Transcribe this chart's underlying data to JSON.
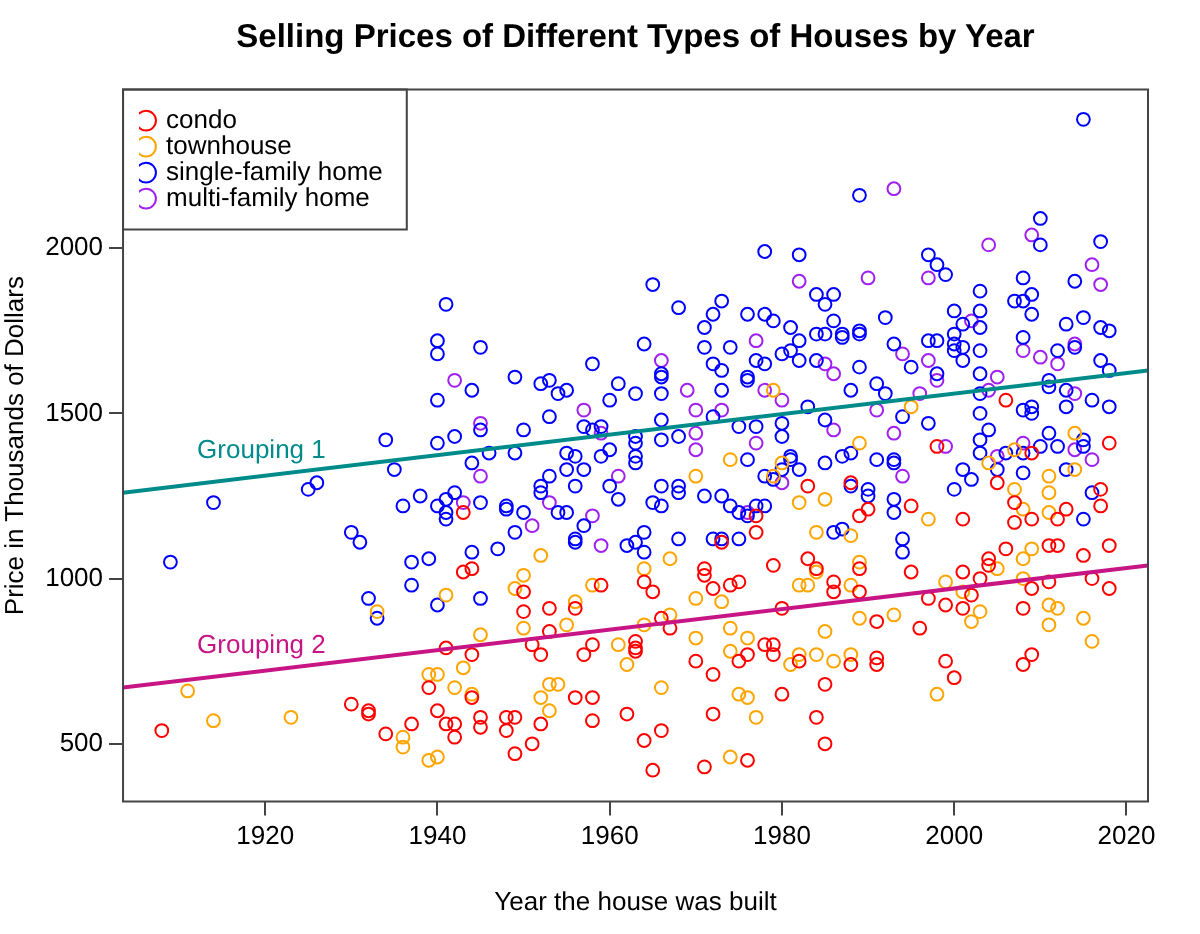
{
  "chart_data": {
    "type": "scatter",
    "title": "Selling Prices of Different Types of Houses by Year",
    "xlabel": "Year the house was built",
    "ylabel": "Price in Thousands of Dollars",
    "xlim": [
      1903.5,
      2022.5
    ],
    "ylim": [
      325,
      2480
    ],
    "xticks": [
      1920,
      1940,
      1960,
      1980,
      2000,
      2020
    ],
    "yticks": [
      500,
      1000,
      1500,
      2000
    ],
    "grid": false,
    "legend": "top left",
    "marker": "circle",
    "series": [
      {
        "name": "condo",
        "color": "#ff0000",
        "x": [
          1908,
          1930,
          1932,
          1932,
          1934,
          1937,
          1939,
          1940,
          1941,
          1942,
          1942,
          1944,
          1943,
          1943,
          1944,
          1941,
          1945,
          1945,
          1944,
          1948,
          1948,
          1949,
          1949,
          1951,
          1952,
          1950,
          1950,
          1951,
          1952,
          1953,
          1953,
          1956,
          1957,
          1956,
          1958,
          1958,
          1958,
          1959,
          1962,
          1963,
          1963,
          1963,
          1964,
          1965,
          1964,
          1966,
          1965,
          1966,
          1967,
          1970,
          1972,
          1971,
          1972,
          1971,
          1971,
          1972,
          1973,
          1974,
          1975,
          1975,
          1976,
          1976,
          1977,
          1978,
          1979,
          1979,
          1980,
          1979,
          1980,
          1982,
          1983,
          1983,
          1984,
          1986,
          1986,
          1984,
          1985,
          1985,
          1977,
          1988,
          1989,
          1990,
          1989,
          1989,
          1988,
          1991,
          1991,
          1991,
          1995,
          1995,
          1997,
          1996,
          1998,
          1999,
          1999,
          2000,
          2001,
          2001,
          2001,
          2002,
          2003,
          2004,
          2004,
          2005,
          2006,
          2007,
          2007,
          2008,
          2008,
          2009,
          2009,
          2009,
          2011,
          2011,
          2012,
          2012,
          2013,
          2015,
          2016,
          2017,
          2017,
          2018,
          2018,
          2018,
          2006,
          2009
        ],
        "values": [
          540,
          620,
          600,
          590,
          530,
          560,
          670,
          600,
          560,
          560,
          520,
          640,
          1020,
          1200,
          770,
          790,
          580,
          550,
          1030,
          580,
          540,
          580,
          470,
          500,
          560,
          960,
          900,
          800,
          770,
          910,
          840,
          910,
          770,
          640,
          640,
          570,
          800,
          980,
          590,
          810,
          790,
          780,
          990,
          960,
          510,
          540,
          420,
          880,
          850,
          750,
          710,
          430,
          590,
          1030,
          1010,
          970,
          1110,
          980,
          990,
          750,
          770,
          450,
          1140,
          800,
          800,
          1040,
          910,
          770,
          650,
          750,
          1280,
          1060,
          1030,
          990,
          960,
          580,
          500,
          680,
          1190,
          1290,
          1190,
          1210,
          1030,
          960,
          740,
          870,
          760,
          740,
          1220,
          1020,
          940,
          850,
          1400,
          920,
          750,
          700,
          1180,
          1020,
          910,
          950,
          1000,
          1060,
          1040,
          1290,
          1090,
          1230,
          1170,
          910,
          740,
          1180,
          970,
          770,
          1100,
          990,
          1100,
          1180,
          1210,
          1070,
          1000,
          1270,
          1220,
          1100,
          970,
          1410,
          1540,
          1380
        ]
      },
      {
        "name": "townhouse",
        "color": "#ffa500",
        "x": [
          1911,
          1914,
          1923,
          1933,
          1936,
          1936,
          1939,
          1940,
          1939,
          1940,
          1941,
          1942,
          1943,
          1944,
          1945,
          1949,
          1950,
          1950,
          1952,
          1952,
          1953,
          1954,
          1953,
          1955,
          1956,
          1958,
          1961,
          1962,
          1964,
          1964,
          1967,
          1967,
          1966,
          1970,
          1970,
          1970,
          1973,
          1974,
          1974,
          1975,
          1976,
          1977,
          1974,
          1976,
          1979,
          1980,
          1981,
          1982,
          1982,
          1983,
          1984,
          1985,
          1984,
          1985,
          1982,
          1986,
          1984,
          1988,
          1989,
          1988,
          1989,
          1993,
          1988,
          1997,
          1998,
          1999,
          2001,
          2002,
          2003,
          2005,
          2007,
          2008,
          2008,
          2008,
          2009,
          2011,
          2011,
          2011,
          2011,
          2012,
          2011,
          2015,
          2016,
          2014,
          2004,
          1995,
          1989,
          2014,
          2007,
          1979,
          1974
        ],
        "values": [
          660,
          570,
          580,
          900,
          520,
          490,
          450,
          460,
          710,
          710,
          950,
          670,
          730,
          650,
          830,
          970,
          1010,
          850,
          1070,
          640,
          680,
          680,
          600,
          860,
          930,
          980,
          800,
          740,
          1030,
          860,
          1060,
          890,
          670,
          940,
          820,
          1310,
          930,
          850,
          780,
          650,
          640,
          580,
          460,
          820,
          1310,
          1350,
          740,
          770,
          980,
          980,
          770,
          840,
          1140,
          1240,
          1230,
          750,
          1020,
          1130,
          1050,
          980,
          880,
          890,
          770,
          1180,
          650,
          990,
          960,
          870,
          900,
          1030,
          1270,
          1210,
          1060,
          1000,
          1090,
          1310,
          1260,
          1200,
          920,
          910,
          860,
          880,
          810,
          1330,
          1350,
          1520,
          1410,
          1440,
          1390,
          1570,
          1360
        ]
      },
      {
        "name": "single-family home",
        "color": "#0000ff",
        "x": [
          1909,
          1914,
          1925,
          1926,
          1930,
          1931,
          1932,
          1933,
          1935,
          1936,
          1937,
          1937,
          1938,
          1939,
          1940,
          1940,
          1941,
          1941,
          1941,
          1942,
          1944,
          1944,
          1945,
          1945,
          1941,
          1940,
          1940,
          1945,
          1944,
          1940,
          1934,
          1942,
          1940,
          1945,
          1978,
          1982,
          1965,
          1968,
          1973,
          1972,
          1971,
          1976,
          1978,
          1979,
          1981,
          1982,
          1984,
          1986,
          1985,
          1986,
          1984,
          1985,
          1987,
          1964,
          1971,
          1974,
          1972,
          1973,
          1976,
          1977,
          1978,
          1980,
          1981,
          1982,
          1984,
          1958,
          1949,
          1953,
          1952,
          1954,
          1955,
          1961,
          1963,
          1966,
          1966,
          1966,
          1960,
          1973,
          1976,
          1953,
          1957,
          1958,
          1959,
          1950,
          1966,
          1963,
          1963,
          1968,
          1972,
          1975,
          1977,
          1980,
          1980,
          1983,
          1949,
          1956,
          1959,
          1966,
          1976,
          1981,
          2015,
          1989,
          2010,
          2017,
          2010,
          1997,
          1998,
          1999,
          2008,
          2014,
          2007,
          2008,
          2009,
          2003,
          2003,
          2000,
          2009,
          1992,
          2013,
          2015,
          2017,
          2018,
          1987,
          1989,
          1989,
          2001,
          2000,
          2003,
          1993,
          1997,
          1998,
          2000,
          2000,
          2001,
          2003,
          2008,
          2012,
          2014,
          2017,
          2018,
          1989,
          1995,
          1998,
          2001,
          2003,
          2011,
          2011,
          2013,
          2016,
          2018,
          1988,
          1991,
          1992,
          1994,
          1997,
          2003,
          2003,
          2004,
          2003,
          2003,
          2006,
          2009,
          2009,
          2008,
          2013,
          2015,
          2015,
          2011,
          2012,
          1985,
          1987,
          1988,
          1991,
          1993,
          1993,
          1990,
          1988,
          1990,
          1993,
          1993,
          1994,
          1994,
          1986,
          1987,
          2000,
          2001,
          2002,
          2005,
          2008,
          2008,
          2010,
          2013,
          2015,
          2016,
          1946,
          1947,
          1948,
          1948,
          1949,
          1950,
          1952,
          1952,
          1953,
          1954,
          1955,
          1955,
          1956,
          1956,
          1956,
          1957,
          1957,
          1960,
          1961,
          1962,
          1963,
          1964,
          1963,
          1963,
          1964,
          1966,
          1966,
          1968,
          1968,
          1968,
          1965,
          1971,
          1973,
          1974,
          1972,
          1973,
          1975,
          1975,
          1976,
          1977,
          1978,
          1978,
          1979,
          1980,
          1981,
          1982,
          1985,
          1960,
          1955
        ],
        "values": [
          1050,
          1230,
          1270,
          1290,
          1140,
          1110,
          940,
          880,
          1330,
          1220,
          1050,
          980,
          1250,
          1060,
          920,
          1220,
          1240,
          1200,
          1180,
          1260,
          1080,
          1350,
          940,
          1230,
          1830,
          1720,
          1680,
          1700,
          1570,
          1540,
          1420,
          1430,
          1410,
          1450,
          1990,
          1980,
          1890,
          1820,
          1840,
          1800,
          1760,
          1800,
          1800,
          1780,
          1760,
          1720,
          1860,
          1860,
          1830,
          1780,
          1740,
          1740,
          1740,
          1710,
          1700,
          1700,
          1650,
          1630,
          1610,
          1660,
          1650,
          1680,
          1690,
          1660,
          1660,
          1650,
          1610,
          1600,
          1590,
          1560,
          1570,
          1590,
          1560,
          1610,
          1620,
          1560,
          1540,
          1570,
          1600,
          1490,
          1460,
          1450,
          1460,
          1450,
          1480,
          1430,
          1410,
          1430,
          1490,
          1460,
          1460,
          1470,
          1430,
          1520,
          1380,
          1370,
          1370,
          1420,
          1360,
          1360,
          2390,
          2160,
          2090,
          2020,
          2010,
          1980,
          1950,
          1920,
          1910,
          1900,
          1840,
          1840,
          1860,
          1870,
          1810,
          1810,
          1800,
          1790,
          1770,
          1790,
          1760,
          1750,
          1730,
          1750,
          1740,
          1770,
          1740,
          1760,
          1710,
          1720,
          1720,
          1710,
          1690,
          1700,
          1690,
          1730,
          1690,
          1700,
          1660,
          1630,
          1640,
          1640,
          1620,
          1660,
          1620,
          1600,
          1580,
          1570,
          1540,
          1520,
          1570,
          1590,
          1560,
          1490,
          1470,
          1560,
          1500,
          1450,
          1420,
          1380,
          1380,
          1520,
          1500,
          1510,
          1520,
          1420,
          1400,
          1440,
          1400,
          1480,
          1370,
          1380,
          1360,
          1360,
          1350,
          1270,
          1280,
          1250,
          1240,
          1200,
          1120,
          1080,
          1140,
          1150,
          1270,
          1330,
          1300,
          1330,
          1320,
          1380,
          1400,
          1330,
          1180,
          1260,
          1380,
          1090,
          1220,
          1210,
          1140,
          1200,
          1280,
          1260,
          1310,
          1200,
          1330,
          1200,
          1280,
          1120,
          1110,
          1330,
          1160,
          1280,
          1240,
          1100,
          1110,
          1140,
          1370,
          1350,
          1080,
          1280,
          1220,
          1280,
          1260,
          1120,
          1230,
          1250,
          1250,
          1220,
          1120,
          1120,
          1120,
          1200,
          1190,
          1220,
          1220,
          1310,
          1300,
          1330,
          1370,
          1330,
          1350,
          1390,
          1380
        ]
      },
      {
        "name": "multi-family home",
        "color": "#a020f0",
        "x": [
          1942,
          1945,
          1943,
          1945,
          1982,
          1966,
          1969,
          1970,
          1957,
          1970,
          1970,
          1973,
          1977,
          1977,
          1978,
          1980,
          1985,
          1986,
          1986,
          1959,
          1951,
          1953,
          1958,
          1959,
          1961,
          1976,
          1980,
          1993,
          2004,
          2009,
          2016,
          2017,
          1997,
          1990,
          2002,
          1994,
          1997,
          2008,
          2010,
          2014,
          1996,
          1998,
          2004,
          2005,
          2012,
          2014,
          1991,
          1993,
          1999,
          2008,
          1994,
          2005,
          2014,
          2016
        ],
        "values": [
          1600,
          1470,
          1230,
          1310,
          1900,
          1660,
          1570,
          1510,
          1510,
          1440,
          1390,
          1510,
          1720,
          1410,
          1570,
          1540,
          1650,
          1620,
          1450,
          1440,
          1160,
          1230,
          1190,
          1100,
          1310,
          1200,
          1290,
          2180,
          2010,
          2040,
          1950,
          1890,
          1910,
          1910,
          1780,
          1680,
          1660,
          1690,
          1670,
          1710,
          1560,
          1600,
          1570,
          1610,
          1650,
          1560,
          1510,
          1440,
          1400,
          1410,
          1310,
          1370,
          1390,
          1360
        ]
      },
      {
        "type": "line",
        "name": "Grouping 1",
        "color": "#008b8b",
        "marker": "none",
        "x": [
          1903.5,
          2022.5
        ],
        "values": [
          1260,
          1630
        ]
      },
      {
        "type": "line",
        "name": "Grouping 2",
        "color": "#c71585",
        "marker": "none",
        "x": [
          1903.5,
          2022.5
        ],
        "values": [
          670,
          1040
        ]
      }
    ]
  }
}
